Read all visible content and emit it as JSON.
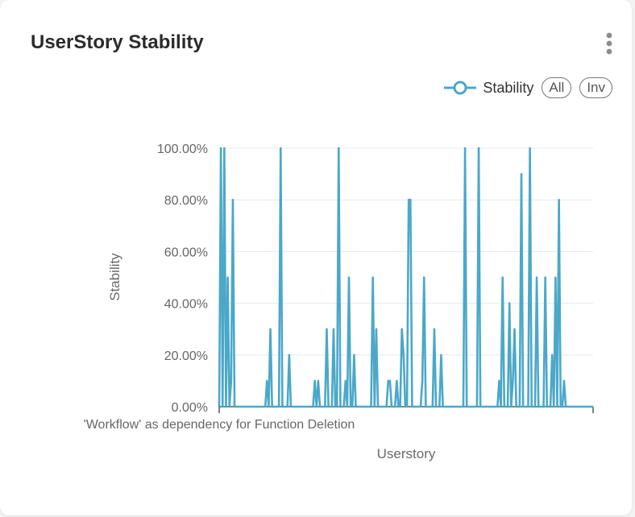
{
  "card": {
    "title": "UserStory Stability",
    "menu_icon": "more-vertical-icon"
  },
  "legend": {
    "series_label": "Stability",
    "all_label": "All",
    "inv_label": "Inv"
  },
  "colors": {
    "series": "#4ba8c9",
    "grid": "#e3e8f0",
    "axis": "#555555"
  },
  "chart_data": {
    "type": "line",
    "title": "UserStory Stability",
    "xlabel": "Userstory",
    "ylabel": "Stability",
    "ylim": [
      0,
      100
    ],
    "yticks": [
      "0.00%",
      "20.00%",
      "40.00%",
      "60.00%",
      "80.00%",
      "100.00%"
    ],
    "visible_category_label": "'Workflow' as dependency for Function Deletion",
    "grid": true,
    "legend_position": "top-right",
    "series": [
      {
        "name": "Stability",
        "values": [
          0,
          100,
          0,
          100,
          0,
          50,
          0,
          10,
          80,
          0,
          0,
          0,
          0,
          0,
          0,
          0,
          0,
          0,
          0,
          0,
          0,
          0,
          0,
          0,
          0,
          0,
          0,
          0,
          10,
          0,
          30,
          0,
          0,
          0,
          0,
          0,
          100,
          0,
          0,
          0,
          0,
          20,
          0,
          0,
          0,
          0,
          0,
          0,
          0,
          0,
          0,
          0,
          0,
          0,
          0,
          0,
          10,
          0,
          10,
          0,
          0,
          0,
          0,
          30,
          0,
          0,
          0,
          30,
          0,
          0,
          100,
          0,
          0,
          0,
          10,
          0,
          50,
          0,
          0,
          20,
          0,
          0,
          0,
          0,
          0,
          0,
          0,
          0,
          0,
          0,
          50,
          0,
          30,
          0,
          0,
          0,
          0,
          0,
          0,
          10,
          10,
          0,
          0,
          0,
          10,
          0,
          0,
          30,
          20,
          0,
          0,
          80,
          80,
          0,
          0,
          0,
          0,
          0,
          0,
          10,
          50,
          0,
          0,
          0,
          0,
          0,
          30,
          0,
          0,
          0,
          20,
          0,
          0,
          0,
          0,
          0,
          0,
          0,
          0,
          0,
          0,
          0,
          0,
          0,
          100,
          0,
          0,
          0,
          0,
          0,
          0,
          0,
          100,
          0,
          0,
          0,
          0,
          0,
          0,
          0,
          0,
          0,
          0,
          0,
          10,
          0,
          50,
          0,
          0,
          0,
          40,
          0,
          10,
          30,
          0,
          0,
          0,
          90,
          0,
          0,
          0,
          0,
          100,
          0,
          0,
          0,
          50,
          0,
          0,
          0,
          0,
          50,
          0,
          0,
          0,
          20,
          0,
          50,
          0,
          80,
          0,
          0,
          10,
          0,
          0,
          0,
          0,
          0,
          0,
          0,
          0,
          0,
          0,
          0,
          0,
          0,
          0,
          0,
          0,
          0
        ]
      }
    ]
  }
}
